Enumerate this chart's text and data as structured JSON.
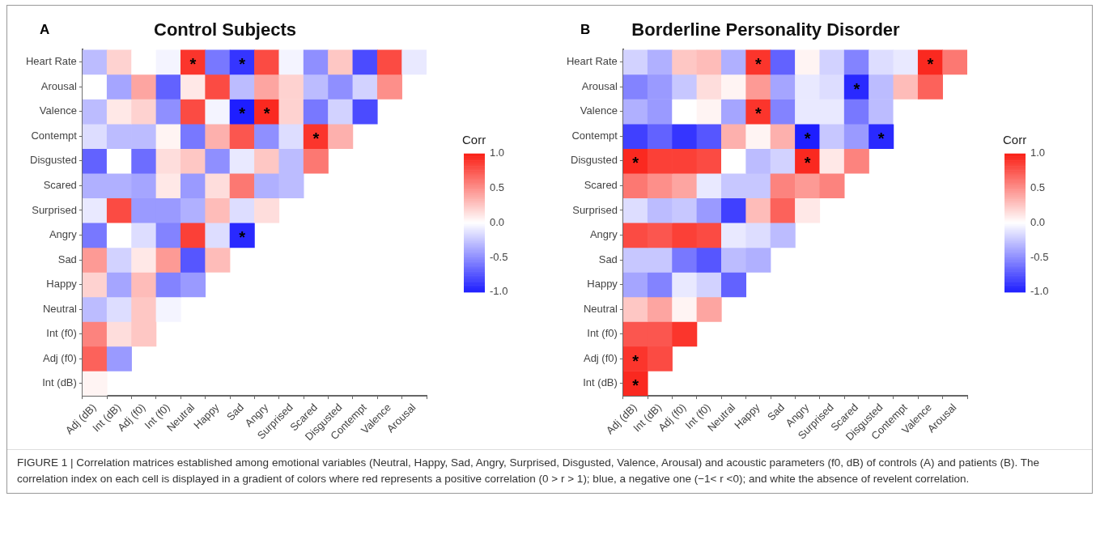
{
  "chart_data": [
    {
      "type": "heatmap",
      "title": "Control Subjects",
      "clabel": "Corr",
      "clim": [
        -1,
        1
      ],
      "cticks": [
        {
          "value": -1,
          "label": "-1.0"
        },
        {
          "value": -0.5,
          "label": "-0.5"
        },
        {
          "value": 0,
          "label": "0.0"
        },
        {
          "value": 0.5,
          "label": "0.5"
        },
        {
          "value": 1,
          "label": "1.0"
        }
      ],
      "annotations": [
        "A"
      ],
      "categories": [
        "Adj (dB)",
        "Int (dB)",
        "Adj (f0)",
        "Int (f0)",
        "Neutral",
        "Happy",
        "Sad",
        "Angry",
        "Surprised",
        "Scared",
        "Disgusted",
        "Contempt",
        "Valence",
        "Arousal"
      ],
      "y_categories": [
        "Heart Rate",
        "Arousal",
        "Valence",
        "Contempt",
        "Disgusted",
        "Scared",
        "Surprised",
        "Angry",
        "Sad",
        "Happy",
        "Neutral",
        "Int (f0)",
        "Adj (f0)",
        "Int (dB)"
      ],
      "cells": [
        [
          -0.3,
          0.2,
          0.0,
          -0.05,
          0.9,
          -0.6,
          -0.9,
          0.8,
          -0.05,
          -0.5,
          0.25,
          -0.8,
          0.8,
          -0.1
        ],
        [
          0.0,
          -0.4,
          0.4,
          -0.7,
          0.1,
          0.8,
          -0.3,
          0.4,
          0.2,
          -0.3,
          -0.5,
          -0.2,
          0.5,
          null
        ],
        [
          -0.3,
          0.1,
          0.2,
          -0.5,
          0.8,
          -0.05,
          -1.0,
          0.95,
          0.2,
          -0.6,
          -0.2,
          -0.8,
          null,
          null
        ],
        [
          -0.15,
          -0.3,
          -0.3,
          0.05,
          -0.6,
          0.35,
          0.75,
          -0.5,
          -0.15,
          0.9,
          0.35,
          null,
          null,
          null
        ],
        [
          -0.7,
          0.0,
          -0.65,
          0.15,
          0.25,
          -0.5,
          -0.1,
          0.25,
          -0.3,
          0.6,
          null,
          null,
          null,
          null
        ],
        [
          -0.35,
          -0.35,
          -0.4,
          0.1,
          -0.45,
          0.15,
          0.6,
          -0.35,
          -0.3,
          null,
          null,
          null,
          null,
          null
        ],
        [
          -0.1,
          0.8,
          -0.45,
          -0.45,
          -0.35,
          0.3,
          -0.15,
          0.15,
          null,
          null,
          null,
          null,
          null,
          null
        ],
        [
          -0.6,
          0.0,
          -0.15,
          -0.55,
          0.85,
          -0.15,
          -0.95,
          null,
          null,
          null,
          null,
          null,
          null,
          null
        ],
        [
          0.45,
          -0.2,
          0.1,
          0.45,
          -0.75,
          0.3,
          null,
          null,
          null,
          null,
          null,
          null,
          null,
          null
        ],
        [
          0.2,
          -0.4,
          0.3,
          -0.55,
          -0.45,
          null,
          null,
          null,
          null,
          null,
          null,
          null,
          null,
          null
        ],
        [
          -0.3,
          -0.15,
          0.25,
          -0.05,
          null,
          null,
          null,
          null,
          null,
          null,
          null,
          null,
          null,
          null
        ],
        [
          0.55,
          0.15,
          0.25,
          null,
          null,
          null,
          null,
          null,
          null,
          null,
          null,
          null,
          null,
          null
        ],
        [
          0.7,
          -0.45,
          null,
          null,
          null,
          null,
          null,
          null,
          null,
          null,
          null,
          null,
          null,
          null
        ],
        [
          0.05,
          null,
          null,
          null,
          null,
          null,
          null,
          null,
          null,
          null,
          null,
          null,
          null,
          null
        ]
      ],
      "cell_labels": [
        [
          null,
          null,
          null,
          null,
          "*",
          null,
          "*",
          null,
          null,
          null,
          null,
          null,
          null,
          null
        ],
        [
          null,
          null,
          null,
          null,
          null,
          null,
          null,
          null,
          null,
          null,
          null,
          null,
          null,
          null
        ],
        [
          null,
          null,
          null,
          null,
          null,
          null,
          "*",
          "*",
          null,
          null,
          null,
          null,
          null,
          null
        ],
        [
          null,
          null,
          null,
          null,
          null,
          null,
          null,
          null,
          null,
          "*",
          null,
          null,
          null,
          null
        ],
        [
          null,
          null,
          null,
          null,
          null,
          null,
          null,
          null,
          null,
          null,
          null,
          null,
          null,
          null
        ],
        [
          null,
          null,
          null,
          null,
          null,
          null,
          null,
          null,
          null,
          null,
          null,
          null,
          null,
          null
        ],
        [
          null,
          null,
          null,
          null,
          null,
          null,
          null,
          null,
          null,
          null,
          null,
          null,
          null,
          null
        ],
        [
          null,
          null,
          null,
          null,
          null,
          null,
          "*",
          null,
          null,
          null,
          null,
          null,
          null,
          null
        ],
        [
          null,
          null,
          null,
          null,
          null,
          null,
          null,
          null,
          null,
          null,
          null,
          null,
          null,
          null
        ],
        [
          null,
          null,
          null,
          null,
          null,
          null,
          null,
          null,
          null,
          null,
          null,
          null,
          null,
          null
        ],
        [
          null,
          null,
          null,
          null,
          null,
          null,
          null,
          null,
          null,
          null,
          null,
          null,
          null,
          null
        ],
        [
          null,
          null,
          null,
          null,
          null,
          null,
          null,
          null,
          null,
          null,
          null,
          null,
          null,
          null
        ],
        [
          null,
          null,
          null,
          null,
          null,
          null,
          null,
          null,
          null,
          null,
          null,
          null,
          null,
          null
        ],
        [
          null,
          null,
          null,
          null,
          null,
          null,
          null,
          null,
          null,
          null,
          null,
          null,
          null,
          null
        ]
      ]
    },
    {
      "type": "heatmap",
      "title": "Borderline Personality Disorder",
      "clabel": "Corr",
      "clim": [
        -1,
        1
      ],
      "cticks": [
        {
          "value": -1,
          "label": "-1.0"
        },
        {
          "value": -0.5,
          "label": "-0.5"
        },
        {
          "value": 0,
          "label": "0.0"
        },
        {
          "value": 0.5,
          "label": "0.5"
        },
        {
          "value": 1,
          "label": "1.0"
        }
      ],
      "annotations": [
        "B",
        "FIGURE 1 | Correlation matrices established among emotional variables (Neutral, Happy, Sad, Angry, Surprised, Disgusted, Valence, Arousal) and acoustic parameters (f0, dB) of controls (A) and patients (B). The correlation index on each cell is displayed in a gradient of colors where red represents a positive correlation (0 > r > 1); blue, a negative one (−1< r <0); and white the absence of revelent correlation."
      ],
      "categories": [
        "Adj (dB)",
        "Int (dB)",
        "Adj (f0)",
        "Int (f0)",
        "Neutral",
        "Happy",
        "Sad",
        "Angry",
        "Surprised",
        "Scared",
        "Disgusted",
        "Contempt",
        "Valence",
        "Arousal"
      ],
      "y_categories": [
        "Heart Rate",
        "Arousal",
        "Valence",
        "Contempt",
        "Disgusted",
        "Scared",
        "Surprised",
        "Angry",
        "Sad",
        "Happy",
        "Neutral",
        "Int (f0)",
        "Adj (f0)",
        "Int (dB)"
      ],
      "cells": [
        [
          -0.2,
          -0.35,
          0.25,
          0.3,
          -0.35,
          0.9,
          -0.7,
          0.05,
          -0.2,
          -0.55,
          -0.15,
          -0.1,
          0.95,
          0.6
        ],
        [
          -0.55,
          -0.45,
          -0.25,
          0.15,
          0.05,
          0.45,
          -0.4,
          -0.1,
          -0.15,
          -0.95,
          -0.3,
          0.3,
          0.7,
          null
        ],
        [
          -0.35,
          -0.45,
          0.0,
          0.05,
          -0.4,
          0.9,
          -0.55,
          -0.1,
          -0.1,
          -0.6,
          -0.3,
          0.0,
          null,
          null
        ],
        [
          -0.85,
          -0.7,
          -0.9,
          -0.75,
          0.35,
          0.05,
          0.35,
          -1.0,
          -0.25,
          -0.45,
          -0.95,
          null,
          null,
          null
        ],
        [
          0.95,
          0.85,
          0.85,
          0.8,
          0.0,
          -0.3,
          -0.2,
          0.95,
          0.1,
          0.55,
          null,
          null,
          null,
          null
        ],
        [
          0.6,
          0.5,
          0.4,
          -0.1,
          -0.25,
          -0.25,
          0.55,
          0.45,
          0.55,
          null,
          null,
          null,
          null,
          null
        ],
        [
          -0.15,
          -0.3,
          -0.25,
          -0.45,
          -0.85,
          0.3,
          0.7,
          0.1,
          null,
          null,
          null,
          null,
          null,
          null
        ],
        [
          0.8,
          0.75,
          0.85,
          0.8,
          -0.1,
          -0.15,
          -0.3,
          null,
          null,
          null,
          null,
          null,
          null,
          null
        ],
        [
          -0.25,
          -0.25,
          -0.6,
          -0.75,
          -0.3,
          -0.35,
          null,
          null,
          null,
          null,
          null,
          null,
          null,
          null
        ],
        [
          -0.4,
          -0.55,
          -0.1,
          -0.2,
          -0.7,
          null,
          null,
          null,
          null,
          null,
          null,
          null,
          null,
          null
        ],
        [
          0.25,
          0.4,
          0.05,
          0.4,
          null,
          null,
          null,
          null,
          null,
          null,
          null,
          null,
          null,
          null
        ],
        [
          0.75,
          0.75,
          0.9,
          null,
          null,
          null,
          null,
          null,
          null,
          null,
          null,
          null,
          null,
          null
        ],
        [
          0.9,
          0.8,
          null,
          null,
          null,
          null,
          null,
          null,
          null,
          null,
          null,
          null,
          null,
          null
        ],
        [
          0.95,
          null,
          null,
          null,
          null,
          null,
          null,
          null,
          null,
          null,
          null,
          null,
          null,
          null
        ]
      ],
      "cell_labels": [
        [
          null,
          null,
          null,
          null,
          null,
          "*",
          null,
          null,
          null,
          null,
          null,
          null,
          "*",
          null
        ],
        [
          null,
          null,
          null,
          null,
          null,
          null,
          null,
          null,
          null,
          "*",
          null,
          null,
          null,
          null
        ],
        [
          null,
          null,
          null,
          null,
          null,
          "*",
          null,
          null,
          null,
          null,
          null,
          null,
          null,
          null
        ],
        [
          null,
          null,
          null,
          null,
          null,
          null,
          null,
          "*",
          null,
          null,
          "*",
          null,
          null,
          null
        ],
        [
          "*",
          null,
          null,
          null,
          null,
          null,
          null,
          "*",
          null,
          null,
          null,
          null,
          null,
          null
        ],
        [
          null,
          null,
          null,
          null,
          null,
          null,
          null,
          null,
          null,
          null,
          null,
          null,
          null,
          null
        ],
        [
          null,
          null,
          null,
          null,
          null,
          null,
          null,
          null,
          null,
          null,
          null,
          null,
          null,
          null
        ],
        [
          null,
          null,
          null,
          null,
          null,
          null,
          null,
          null,
          null,
          null,
          null,
          null,
          null,
          null
        ],
        [
          null,
          null,
          null,
          null,
          null,
          null,
          null,
          null,
          null,
          null,
          null,
          null,
          null,
          null
        ],
        [
          null,
          null,
          null,
          null,
          null,
          null,
          null,
          null,
          null,
          null,
          null,
          null,
          null,
          null
        ],
        [
          null,
          null,
          null,
          null,
          null,
          null,
          null,
          null,
          null,
          null,
          null,
          null,
          null,
          null
        ],
        [
          null,
          null,
          null,
          null,
          null,
          null,
          null,
          null,
          null,
          null,
          null,
          null,
          null,
          null
        ],
        [
          "*",
          null,
          null,
          null,
          null,
          null,
          null,
          null,
          null,
          null,
          null,
          null,
          null,
          null
        ],
        [
          "*",
          null,
          null,
          null,
          null,
          null,
          null,
          null,
          null,
          null,
          null,
          null,
          null,
          null
        ]
      ]
    }
  ]
}
